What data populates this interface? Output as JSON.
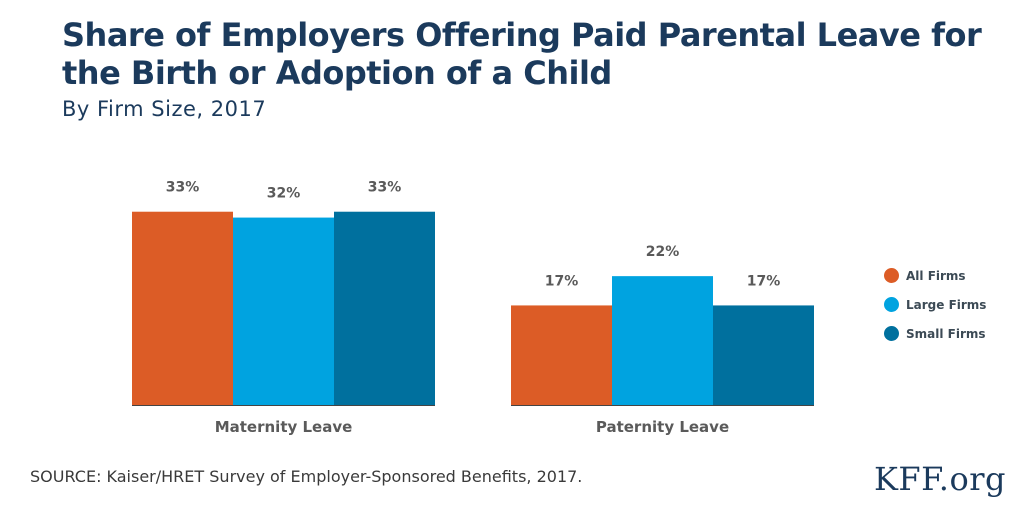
{
  "header": {
    "title": "Share of Employers Offering Paid Parental Leave for the Birth or Adoption of a Child",
    "subtitle": "By Firm Size, 2017"
  },
  "footer": {
    "source": "SOURCE: Kaiser/HRET Survey of Employer-Sponsored Benefits, 2017.",
    "logo": "KFF.org"
  },
  "colors": {
    "title": "#1b3a5c",
    "axis": "#444444",
    "label": "#5a5a5a"
  },
  "chart_data": {
    "type": "bar",
    "title": "Share of Employers Offering Paid Parental Leave for the Birth or Adoption of a Child",
    "subtitle": "By Firm Size, 2017",
    "xlabel": "",
    "ylabel": "",
    "ylim": [
      0,
      35
    ],
    "grid": false,
    "legend": "right",
    "categories": [
      "Maternity Leave",
      "Paternity Leave"
    ],
    "series": [
      {
        "name": "All Firms",
        "color": "#dc5c26",
        "values": [
          33,
          17
        ],
        "labels": [
          "33%",
          "17%"
        ]
      },
      {
        "name": "Large Firms",
        "color": "#00a3e0",
        "values": [
          32,
          22
        ],
        "labels": [
          "32%",
          "22%"
        ]
      },
      {
        "name": "Small Firms",
        "color": "#00709e",
        "values": [
          33,
          17
        ],
        "labels": [
          "33%",
          "17%"
        ]
      }
    ]
  }
}
